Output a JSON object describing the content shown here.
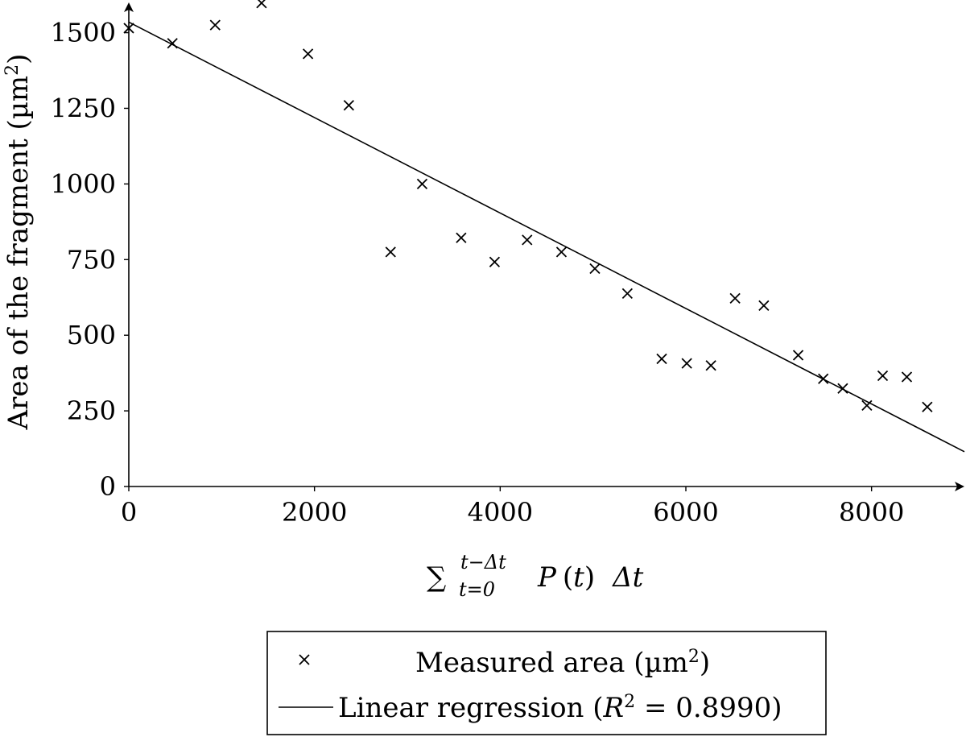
{
  "chart_data": {
    "type": "scatter",
    "title": "",
    "xlabel_parts": {
      "sum": "∑",
      "upper": "t−",
      "upper_delta": "Δ",
      "upper_t": "t",
      "lower": "t=0",
      "body_P": "P",
      "body_open": "(",
      "body_t": "t",
      "body_close": ")",
      "delta": "Δ",
      "delta_t": "t"
    },
    "ylabel_main": "Area of the fragment (µm",
    "ylabel_sup": "2",
    "ylabel_close": ")",
    "xlim": [
      0,
      9000
    ],
    "ylim": [
      0,
      1600
    ],
    "xticks": [
      0,
      2000,
      4000,
      6000,
      8000
    ],
    "xtick_labels": [
      "0",
      "2000",
      "4000",
      "6000",
      "8000"
    ],
    "yticks": [
      0,
      250,
      500,
      750,
      1000,
      1250,
      1500
    ],
    "ytick_labels": [
      "0",
      "250",
      "500",
      "750",
      "1000",
      "1250",
      "1500"
    ],
    "grid": false,
    "legend_position": "below",
    "series": [
      {
        "name": "Measured area (µm²)",
        "marker": "x",
        "x": [
          0,
          470,
          930,
          1430,
          1930,
          2370,
          2820,
          3160,
          3580,
          3940,
          4290,
          4660,
          5020,
          5370,
          5740,
          6010,
          6270,
          6530,
          6840,
          7210,
          7480,
          7690,
          7950,
          8120,
          8380,
          8600
        ],
        "y": [
          1515,
          1465,
          1525,
          1598,
          1430,
          1260,
          775,
          1000,
          822,
          742,
          815,
          775,
          720,
          638,
          422,
          407,
          400,
          622,
          598,
          434,
          356,
          324,
          268,
          366,
          362,
          263
        ]
      },
      {
        "name": "Linear regression",
        "type": "line",
        "x": [
          0,
          9000
        ],
        "y": [
          1535,
          115
        ]
      }
    ],
    "legend": {
      "entry1_text": "Measured area (µm",
      "entry1_sup": "2",
      "entry1_close": ")",
      "entry2_text": "Linear regression (",
      "entry2_R": "R",
      "entry2_sup": "2",
      "entry2_eq": " = 0.8990)"
    }
  }
}
